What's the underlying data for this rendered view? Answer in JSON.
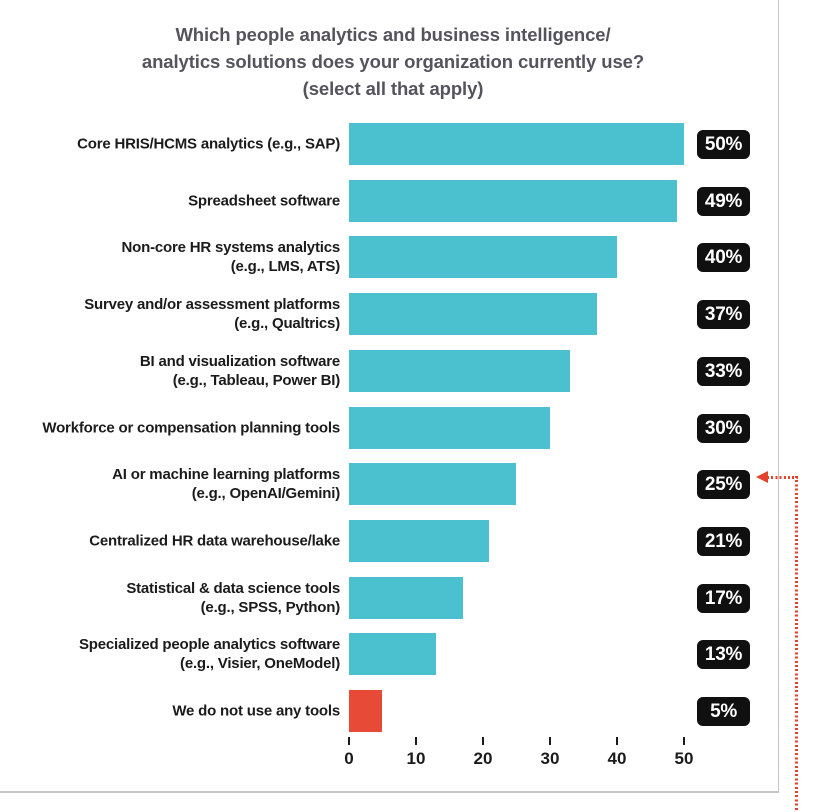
{
  "chart_data": {
    "type": "bar",
    "orientation": "horizontal",
    "title": "Which people analytics and business intelligence/\nanalytics solutions does your organization currently use?\n(select all that apply)",
    "rows": [
      {
        "label_lines": [
          "Core HRIS/HCMS analytics (e.g., SAP)"
        ],
        "value": 50,
        "value_label": "50%",
        "highlight": false
      },
      {
        "label_lines": [
          "Spreadsheet software"
        ],
        "value": 49,
        "value_label": "49%",
        "highlight": false
      },
      {
        "label_lines": [
          "Non-core HR systems analytics",
          "(e.g., LMS, ATS)"
        ],
        "value": 40,
        "value_label": "40%",
        "highlight": false
      },
      {
        "label_lines": [
          "Survey and/or assessment platforms",
          "(e.g., Qualtrics)"
        ],
        "value": 37,
        "value_label": "37%",
        "highlight": false
      },
      {
        "label_lines": [
          "BI and visualization software",
          "(e.g., Tableau, Power BI)"
        ],
        "value": 33,
        "value_label": "33%",
        "highlight": false
      },
      {
        "label_lines": [
          "Workforce or compensation planning tools"
        ],
        "value": 30,
        "value_label": "30%",
        "highlight": false
      },
      {
        "label_lines": [
          "AI or machine learning platforms",
          "(e.g., OpenAI/Gemini)"
        ],
        "value": 25,
        "value_label": "25%",
        "highlight": false
      },
      {
        "label_lines": [
          "Centralized HR data warehouse/lake"
        ],
        "value": 21,
        "value_label": "21%",
        "highlight": false
      },
      {
        "label_lines": [
          "Statistical & data science tools",
          "(e.g., SPSS, Python)"
        ],
        "value": 17,
        "value_label": "17%",
        "highlight": false
      },
      {
        "label_lines": [
          "Specialized people analytics software",
          "(e.g., Visier, OneModel)"
        ],
        "value": 13,
        "value_label": "13%",
        "highlight": false
      },
      {
        "label_lines": [
          "We do not use any tools"
        ],
        "value": 5,
        "value_label": "5%",
        "highlight": true
      }
    ],
    "x_ticks": [
      0,
      10,
      20,
      30,
      40,
      50
    ],
    "xlim": [
      0,
      57
    ],
    "grid": false,
    "legend": false,
    "annotation": {
      "type": "dotted-arrow",
      "points_to_value_label": "25%",
      "points_to_row": "AI or machine learning platforms (e.g., OpenAI/Gemini)"
    }
  },
  "colors": {
    "bar_teal": "#4bc0cf",
    "bar_red": "#e84a38",
    "badge_bg": "#101010",
    "badge_text": "#ffffff",
    "label_text": "#1b1b1b",
    "axis_text": "#1b1b1b",
    "title_text": "#54545c",
    "frame_border": "#c9c3c3",
    "annotation_red": "#e2432c"
  }
}
